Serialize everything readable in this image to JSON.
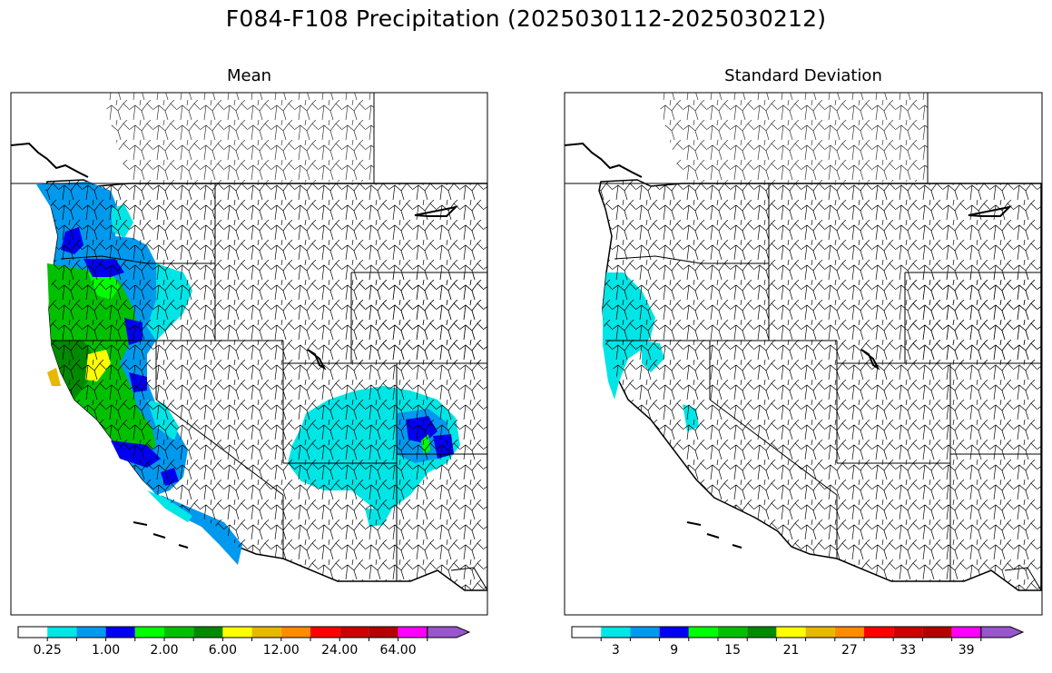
{
  "title": "F084-F108 Precipitation (2025030112-2025030212)",
  "panels": [
    {
      "title": "Mean",
      "colorbar": {
        "colors": [
          "#ffffff",
          "#00e5e5",
          "#0099ee",
          "#0000f0",
          "#00ff00",
          "#00c000",
          "#008a00",
          "#ffff00",
          "#e6b800",
          "#ff8c00",
          "#ff0000",
          "#cc0000",
          "#b30000",
          "#ff00ff",
          "#9955cc"
        ],
        "tick_labels": [
          "0.25",
          "1.00",
          "2.00",
          "6.00",
          "12.00",
          "24.00",
          "64.00"
        ],
        "extend": "max"
      }
    },
    {
      "title": "Standard Deviation",
      "colorbar": {
        "colors": [
          "#ffffff",
          "#00e5e5",
          "#0099ee",
          "#0000f0",
          "#00ff00",
          "#00c000",
          "#008a00",
          "#ffff00",
          "#e6b800",
          "#ff8c00",
          "#ff0000",
          "#cc0000",
          "#b30000",
          "#ff00ff",
          "#9955cc"
        ],
        "tick_labels": [
          "3",
          "9",
          "15",
          "21",
          "27",
          "33",
          "39"
        ],
        "extend": "max"
      }
    }
  ]
}
